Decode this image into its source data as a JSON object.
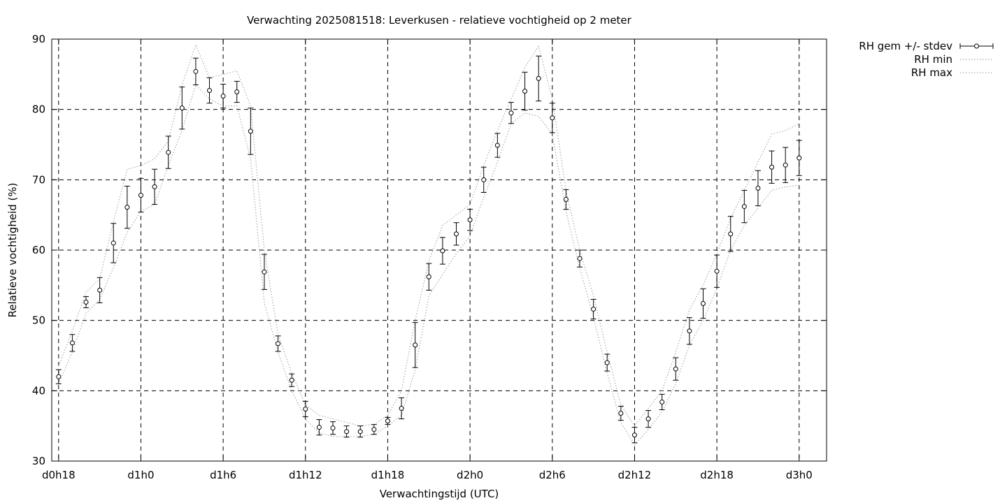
{
  "chart_data": {
    "type": "line",
    "title": "Verwachting 2025081518: Leverkusen - relatieve vochtigheid op 2 meter",
    "xlabel": "Verwachtingstijd (UTC)",
    "ylabel": "Relatieve vochtigheid (%)",
    "xlim": [
      17.5,
      74
    ],
    "ylim": [
      30,
      90
    ],
    "grid": true,
    "legend_position": "top-right (outside plot)",
    "x_ticks": [
      18,
      24,
      30,
      36,
      42,
      48,
      54,
      60,
      66,
      72
    ],
    "x_tick_labels": [
      "d0h18",
      "d1h0",
      "d1h6",
      "d1h12",
      "d1h18",
      "d2h0",
      "d2h6",
      "d2h12",
      "d2h18",
      "d3h0"
    ],
    "y_ticks": [
      30,
      40,
      50,
      60,
      70,
      80,
      90
    ],
    "y_tick_labels": [
      "30",
      "40",
      "50",
      "60",
      "70",
      "80",
      "90"
    ],
    "x": [
      18,
      19,
      20,
      21,
      22,
      23,
      24,
      25,
      26,
      27,
      28,
      29,
      30,
      31,
      32,
      33,
      34,
      35,
      36,
      37,
      38,
      39,
      40,
      41,
      42,
      43,
      44,
      45,
      46,
      47,
      48,
      49,
      50,
      51,
      52,
      53,
      54,
      55,
      56,
      57,
      58,
      59,
      60,
      61,
      62,
      63,
      64,
      65,
      66,
      67,
      68,
      69,
      70,
      71,
      72
    ],
    "series": [
      {
        "name": "RH gem +/- stdev",
        "style": "points-errorbars",
        "mean": [
          42.0,
          46.8,
          52.6,
          54.3,
          61.0,
          66.1,
          67.8,
          69.0,
          73.9,
          80.2,
          85.4,
          82.7,
          81.9,
          82.5,
          76.9,
          56.9,
          46.7,
          41.5,
          37.4,
          34.8,
          34.7,
          34.2,
          34.2,
          34.5,
          35.7,
          37.5,
          46.5,
          56.2,
          59.9,
          62.3,
          64.3,
          70.0,
          74.9,
          79.5,
          82.6,
          84.4,
          78.8,
          67.2,
          58.8,
          51.6,
          44.0,
          36.8,
          33.7,
          36.0,
          38.4,
          43.1,
          48.5,
          52.4,
          57.0,
          62.3,
          66.2,
          68.8,
          71.8,
          72.1,
          73.1
        ],
        "stdev": [
          1.0,
          1.2,
          0.8,
          1.8,
          2.8,
          3.0,
          2.4,
          2.5,
          2.3,
          3.0,
          1.9,
          1.8,
          1.7,
          1.5,
          3.3,
          2.5,
          1.1,
          0.9,
          1.1,
          1.1,
          0.9,
          0.8,
          0.8,
          0.7,
          0.5,
          1.5,
          3.2,
          1.9,
          1.9,
          1.6,
          1.5,
          1.8,
          1.7,
          1.5,
          2.7,
          3.2,
          2.1,
          1.4,
          1.2,
          1.4,
          1.2,
          1.0,
          1.1,
          1.2,
          1.1,
          1.6,
          1.9,
          2.1,
          2.3,
          2.5,
          2.3,
          2.5,
          2.3,
          2.5,
          2.5
        ],
        "color": "#000000"
      },
      {
        "name": "RH min",
        "style": "dotted",
        "values": [
          41.0,
          45.5,
          51.0,
          53.0,
          57.5,
          62.5,
          65.5,
          66.5,
          72.0,
          77.0,
          83.5,
          81.5,
          80.5,
          80.5,
          73.0,
          52.5,
          45.5,
          40.0,
          36.0,
          34.0,
          33.5,
          33.5,
          33.5,
          33.8,
          35.0,
          36.5,
          43.0,
          53.5,
          56.5,
          59.5,
          62.0,
          67.5,
          72.5,
          78.0,
          79.5,
          79.0,
          76.5,
          65.5,
          57.5,
          50.5,
          42.5,
          35.5,
          32.3,
          34.5,
          37.0,
          41.0,
          46.5,
          50.0,
          54.5,
          60.0,
          63.5,
          66.0,
          68.5,
          69.0,
          69.2
        ],
        "color": "#aaaaaa"
      },
      {
        "name": "RH max",
        "style": "dotted",
        "values": [
          43.5,
          48.5,
          54.0,
          56.0,
          64.0,
          71.5,
          72.0,
          73.0,
          75.5,
          83.5,
          89.2,
          84.5,
          85.0,
          85.5,
          80.5,
          60.0,
          48.0,
          42.5,
          38.0,
          36.5,
          36.0,
          35.5,
          35.0,
          35.2,
          36.5,
          40.0,
          50.0,
          58.5,
          63.5,
          65.0,
          66.5,
          72.0,
          77.0,
          81.5,
          86.0,
          89.0,
          81.5,
          68.5,
          60.0,
          53.5,
          45.5,
          38.0,
          35.0,
          37.5,
          40.0,
          45.5,
          51.5,
          55.0,
          59.5,
          64.5,
          68.5,
          72.5,
          76.5,
          77.0,
          78.0
        ],
        "color": "#aaaaaa"
      }
    ]
  }
}
